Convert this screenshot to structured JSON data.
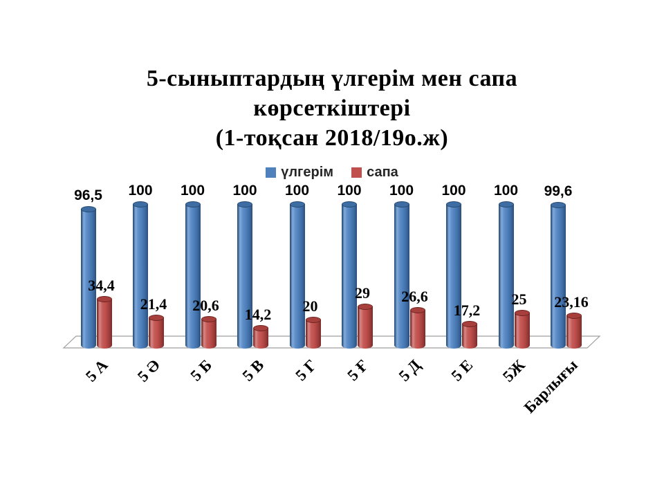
{
  "title": {
    "lines": [
      "5-сыныптардың үлгерім мен сапа",
      "көрсеткіштері",
      "(1-тоқсан 2018/19о.ж)"
    ]
  },
  "legend": {
    "items": [
      {
        "label": "үлгерім",
        "color": "#4F81BD"
      },
      {
        "label": "сапа",
        "color": "#C0504D"
      }
    ]
  },
  "chart_data": {
    "type": "bar",
    "subtype": "3d-cylinder",
    "title": "5-сыныптардың үлгерім мен сапа көрсеткіштері (1-тоқсан 2018/19о.ж)",
    "categories": [
      "5 А",
      "5 Ә",
      "5 Б",
      "5 В",
      "5 Г",
      "5 Ғ",
      "5 Д",
      "5 Е",
      "5Ж",
      "Барлығы"
    ],
    "series": [
      {
        "key": "ulgerim",
        "name": "үлгерім",
        "color": "#4F81BD",
        "values": [
          96.5,
          100,
          100,
          100,
          100,
          100,
          100,
          100,
          100,
          99.6
        ],
        "labels": [
          "96,5",
          "100",
          "100",
          "100",
          "100",
          "100",
          "100",
          "100",
          "100",
          "99,6"
        ]
      },
      {
        "key": "sapa",
        "name": "сапа",
        "color": "#C0504D",
        "values": [
          34.4,
          21.4,
          20.6,
          14.2,
          20,
          29,
          26.6,
          17.2,
          25,
          23.16
        ],
        "labels": [
          "34,4",
          "21,4",
          "20,6",
          "14,2",
          "20",
          "29",
          "26,6",
          "17,2",
          "25",
          "23,16"
        ]
      }
    ],
    "ylim": [
      0,
      100
    ],
    "legend_position": "top",
    "grid": false,
    "value_labels_shown": true
  }
}
